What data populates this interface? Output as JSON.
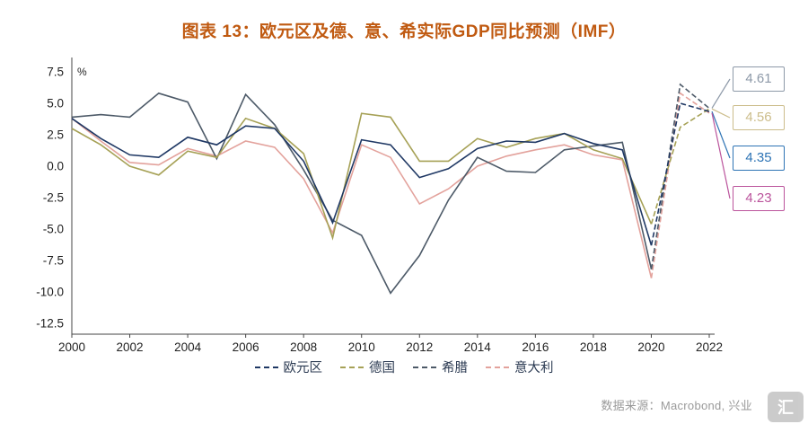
{
  "chart_data": {
    "type": "line",
    "title": "图表 13：欧元区及德、意、希实际GDP同比预测（IMF）",
    "unit_label": "%",
    "x": [
      2000,
      2001,
      2002,
      2003,
      2004,
      2005,
      2006,
      2007,
      2008,
      2009,
      2010,
      2011,
      2012,
      2013,
      2014,
      2015,
      2016,
      2017,
      2018,
      2019,
      2020,
      2021,
      2022
    ],
    "x_tick_labels": [
      "2000",
      "2002",
      "2004",
      "2006",
      "2008",
      "2010",
      "2012",
      "2014",
      "2016",
      "2018",
      "2020",
      "2022"
    ],
    "y_tick_labels": [
      "7.5",
      "5.0",
      "2.5",
      "0.0",
      "-2.5",
      "-5.0",
      "-7.5",
      "-10.0",
      "-12.5"
    ],
    "ylim": [
      -12.5,
      7.5
    ],
    "grid": false,
    "legend_position": "bottom",
    "forecast_start_index": 20,
    "series": [
      {
        "name": "欧元区",
        "color": "#1f3864",
        "values": [
          3.8,
          2.2,
          0.9,
          0.7,
          2.3,
          1.7,
          3.2,
          3.0,
          0.4,
          -4.5,
          2.1,
          1.7,
          -0.9,
          -0.2,
          1.4,
          2.0,
          1.9,
          2.6,
          1.8,
          1.3,
          -6.3,
          5.0,
          4.35
        ]
      },
      {
        "name": "德国",
        "color": "#a6a156",
        "values": [
          3.0,
          1.7,
          0.0,
          -0.7,
          1.2,
          0.7,
          3.8,
          3.0,
          1.0,
          -5.7,
          4.2,
          3.9,
          0.4,
          0.4,
          2.2,
          1.5,
          2.2,
          2.6,
          1.3,
          0.6,
          -4.6,
          3.1,
          4.56
        ]
      },
      {
        "name": "希腊",
        "color": "#4d5a68",
        "values": [
          3.9,
          4.1,
          3.9,
          5.8,
          5.1,
          0.6,
          5.7,
          3.3,
          -0.3,
          -4.3,
          -5.5,
          -10.1,
          -7.1,
          -2.7,
          0.7,
          -0.4,
          -0.5,
          1.3,
          1.6,
          1.9,
          -8.2,
          6.5,
          4.61
        ]
      },
      {
        "name": "意大利",
        "color": "#e3a29c",
        "values": [
          3.8,
          2.0,
          0.3,
          0.1,
          1.4,
          0.8,
          2.0,
          1.5,
          -1.0,
          -5.3,
          1.7,
          0.7,
          -3.0,
          -1.8,
          0.0,
          0.8,
          1.3,
          1.7,
          0.9,
          0.5,
          -8.9,
          5.8,
          4.23
        ]
      }
    ],
    "end_labels": [
      {
        "text": "4.61",
        "series": "希腊",
        "color": "#8d99a8"
      },
      {
        "text": "4.56",
        "series": "德国",
        "color": "#ccbd8b"
      },
      {
        "text": "4.35",
        "series": "欧元区",
        "color": "#2e74b5"
      },
      {
        "text": "4.23",
        "series": "意大利",
        "color": "#bb549c"
      }
    ]
  },
  "footer": {
    "source": "数据来源：Macrobond, 兴业"
  },
  "watermark": {
    "glyph": "汇"
  }
}
